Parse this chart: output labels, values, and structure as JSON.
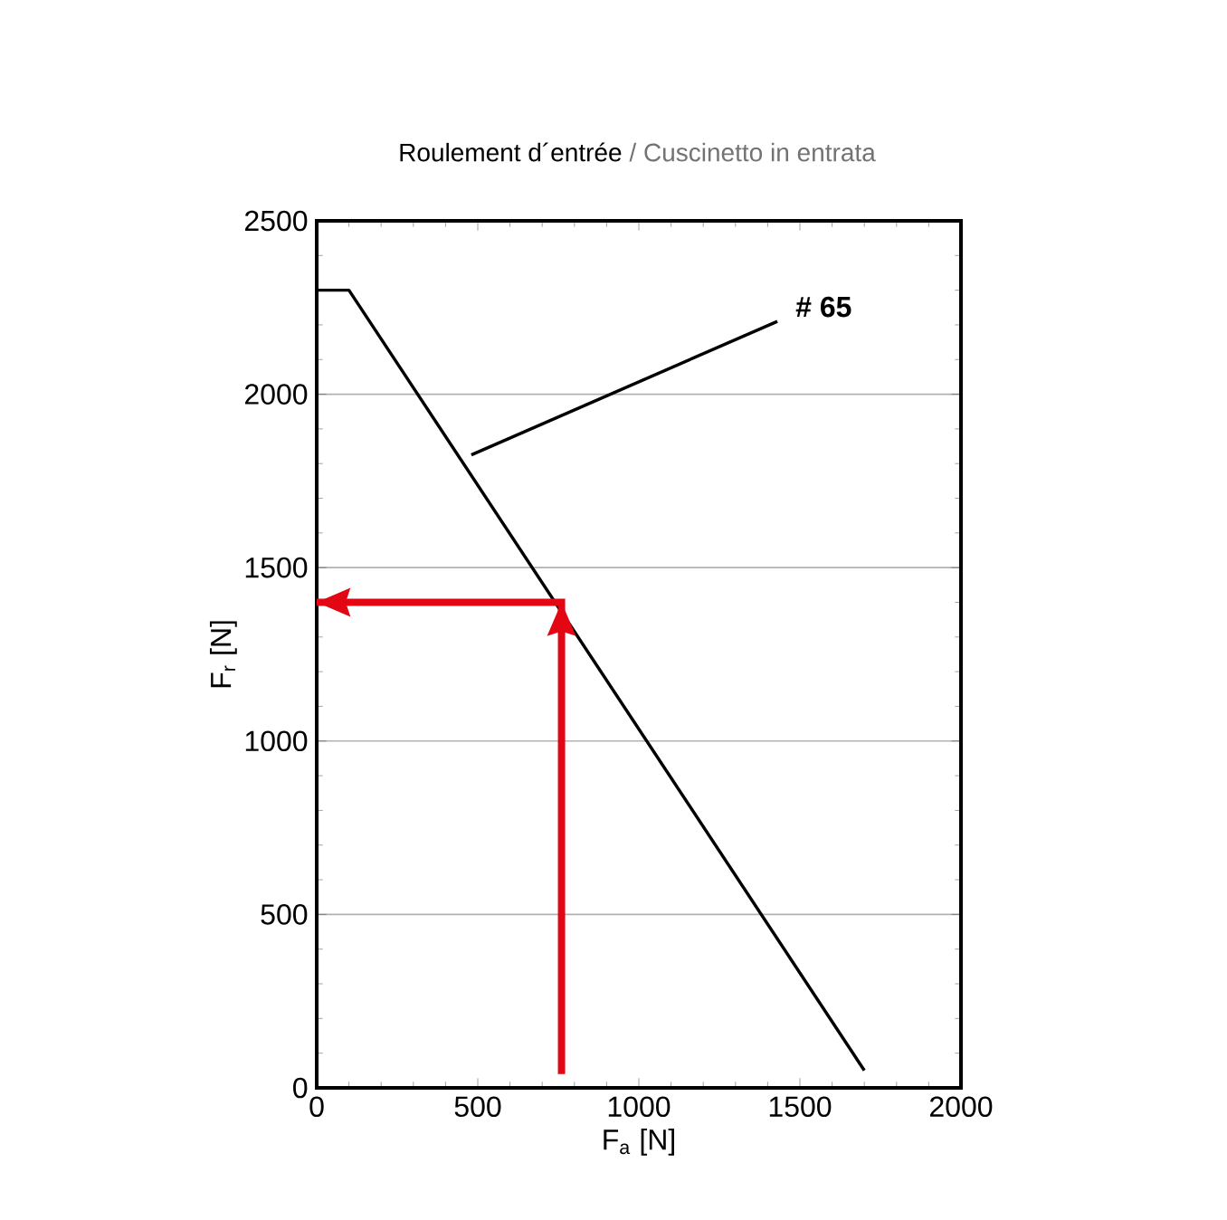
{
  "chart_data": {
    "type": "line",
    "title": "Roulement d´entrée",
    "subtitle": "/ Cuscinetto in entrata",
    "xlabel": "F$_{a}$ [N]",
    "ylabel": "F$_{r}$ [N]",
    "series": [
      {
        "x": [
          0,
          100,
          1700
        ],
        "values": [
          2300,
          2300,
          50
        ],
        "color": "#000000"
      },
      {
        "x": [
          480,
          1430
        ],
        "values": [
          1825,
          2210
        ],
        "color": "#000000"
      },
      {
        "x": [
          760,
          760,
          0
        ],
        "values": [
          40,
          1400,
          1400
        ],
        "color": "#e30613"
      }
    ],
    "annotations": [
      "# 65"
    ],
    "xlim": [
      0,
      2000
    ],
    "ylim": [
      0,
      2500
    ],
    "xticks": [
      0,
      500,
      1000,
      1500,
      2000
    ],
    "yticks": [
      0,
      500,
      1000,
      1500,
      2000,
      2500
    ],
    "grid": "y",
    "marker": "none",
    "line_style": "solid"
  }
}
